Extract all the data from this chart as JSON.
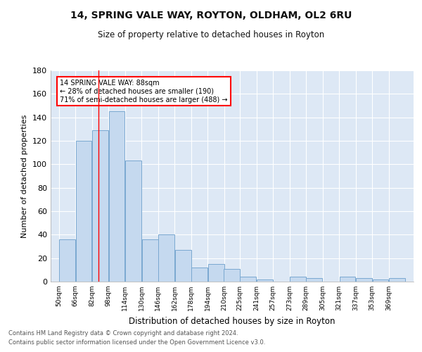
{
  "title1": "14, SPRING VALE WAY, ROYTON, OLDHAM, OL2 6RU",
  "title2": "Size of property relative to detached houses in Royton",
  "xlabel": "Distribution of detached houses by size in Royton",
  "ylabel": "Number of detached properties",
  "footnote1": "Contains HM Land Registry data © Crown copyright and database right 2024.",
  "footnote2": "Contains public sector information licensed under the Open Government Licence v3.0.",
  "bar_centers": [
    58,
    74,
    90,
    106,
    122,
    138,
    154,
    170,
    186,
    202,
    217,
    233,
    249,
    265,
    281,
    297,
    313,
    329,
    345,
    361,
    377
  ],
  "bar_heights": [
    36,
    120,
    129,
    145,
    103,
    36,
    40,
    27,
    12,
    15,
    11,
    4,
    2,
    0,
    4,
    3,
    0,
    4,
    3,
    2,
    3
  ],
  "bar_width": 15.5,
  "bar_color": "#c5d9ef",
  "bar_edgecolor": "#7aa8d0",
  "tick_labels": [
    "50sqm",
    "66sqm",
    "82sqm",
    "98sqm",
    "114sqm",
    "130sqm",
    "146sqm",
    "162sqm",
    "178sqm",
    "194sqm",
    "210sqm",
    "225sqm",
    "241sqm",
    "257sqm",
    "273sqm",
    "289sqm",
    "305sqm",
    "321sqm",
    "337sqm",
    "353sqm",
    "369sqm"
  ],
  "tick_positions": [
    50,
    66,
    82,
    98,
    114,
    130,
    146,
    162,
    178,
    194,
    210,
    225,
    241,
    257,
    273,
    289,
    305,
    321,
    337,
    353,
    369
  ],
  "ylim": [
    0,
    180
  ],
  "yticks": [
    0,
    20,
    40,
    60,
    80,
    100,
    120,
    140,
    160,
    180
  ],
  "red_line_x": 88,
  "annotation_title": "14 SPRING VALE WAY: 88sqm",
  "annotation_line1": "← 28% of detached houses are smaller (190)",
  "annotation_line2": "71% of semi-detached houses are larger (488) →",
  "bg_color": "#dde8f5",
  "grid_color": "#ffffff",
  "fig_bg": "#ffffff"
}
